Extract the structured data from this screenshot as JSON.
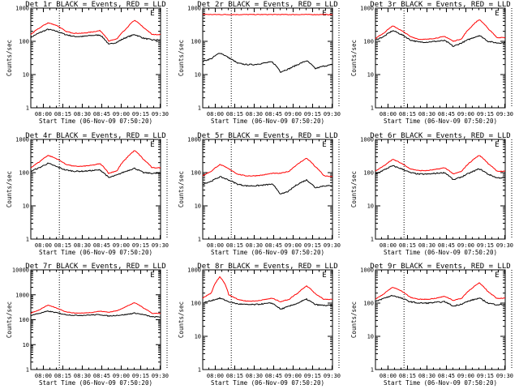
{
  "colors": {
    "events": "#000000",
    "lld": "#ff0000",
    "background": "#ffffff"
  },
  "shared": {
    "xlabel": "Start Time (06-Nov-09 07:50:20)",
    "ylabel": "Counts/sec",
    "xticks": [
      "08:00",
      "08:15",
      "08:30",
      "08:45",
      "09:00",
      "09:15",
      "09:30"
    ],
    "yticks": [
      "1",
      "10",
      "100",
      "1000"
    ],
    "corner_label": "E",
    "marker_times_min_after_start": [
      22,
      105
    ]
  },
  "chart_data": [
    {
      "type": "line",
      "title": "Det 1r BLACK = Events, RED = LLD",
      "yscale": "log",
      "ylim": [
        1,
        1000
      ],
      "xlim_min": [
        0,
        100
      ],
      "series": [
        {
          "name": "BLACK = Events",
          "color": "#000000",
          "values": [
            130,
            180,
            230,
            200,
            160,
            140,
            140,
            150,
            155,
            80,
            95,
            130,
            160,
            125,
            110,
            110
          ]
        },
        {
          "name": "RED = LLD",
          "color": "#ff0000",
          "values": [
            160,
            250,
            360,
            300,
            200,
            175,
            175,
            190,
            210,
            100,
            120,
            230,
            430,
            260,
            160,
            160
          ]
        }
      ]
    },
    {
      "type": "line",
      "title": "Det 2r BLACK = Events, RED = LLD",
      "yscale": "log",
      "ylim": [
        1,
        1000
      ],
      "series": [
        {
          "name": "BLACK = Events",
          "color": "#000000",
          "values": [
            25,
            30,
            45,
            32,
            22,
            20,
            20,
            22,
            24,
            12,
            15,
            20,
            26,
            15,
            18,
            20
          ]
        },
        {
          "name": "RED = LLD",
          "color": "#ff0000",
          "values": [
            650,
            640,
            640,
            640,
            640,
            640,
            640,
            640,
            640,
            640,
            640,
            640,
            640,
            640,
            640,
            640
          ]
        }
      ]
    },
    {
      "type": "line",
      "title": "Det 3r BLACK = Events, RED = LLD",
      "yscale": "log",
      "ylim": [
        1,
        1000
      ],
      "series": [
        {
          "name": "BLACK = Events",
          "color": "#000000",
          "values": [
            110,
            140,
            210,
            160,
            110,
            95,
            95,
            100,
            105,
            70,
            90,
            120,
            150,
            100,
            90,
            90
          ]
        },
        {
          "name": "RED = LLD",
          "color": "#ff0000",
          "values": [
            120,
            180,
            290,
            210,
            140,
            115,
            115,
            125,
            140,
            100,
            120,
            260,
            450,
            240,
            130,
            130
          ]
        }
      ]
    },
    {
      "type": "line",
      "title": "Det 4r BLACK = Events, RED = LLD",
      "yscale": "log",
      "ylim": [
        1,
        1000
      ],
      "series": [
        {
          "name": "BLACK = Events",
          "color": "#000000",
          "values": [
            110,
            140,
            190,
            150,
            120,
            110,
            110,
            115,
            120,
            70,
            85,
            110,
            135,
            100,
            95,
            95
          ]
        },
        {
          "name": "RED = LLD",
          "color": "#ff0000",
          "values": [
            140,
            210,
            330,
            260,
            180,
            155,
            155,
            165,
            185,
            95,
            115,
            260,
            460,
            250,
            140,
            140
          ]
        }
      ]
    },
    {
      "type": "line",
      "title": "Det 5r BLACK = Events, RED = LLD",
      "yscale": "log",
      "ylim": [
        1,
        1000
      ],
      "series": [
        {
          "name": "BLACK = Events",
          "color": "#000000",
          "values": [
            45,
            55,
            75,
            60,
            45,
            40,
            40,
            42,
            45,
            22,
            28,
            45,
            60,
            35,
            40,
            40
          ]
        },
        {
          "name": "RED = LLD",
          "color": "#ff0000",
          "values": [
            80,
            110,
            175,
            130,
            90,
            80,
            80,
            85,
            95,
            95,
            110,
            180,
            270,
            150,
            80,
            75
          ]
        }
      ]
    },
    {
      "type": "line",
      "title": "Det 6r BLACK = Events, RED = LLD",
      "yscale": "log",
      "ylim": [
        1,
        1000
      ],
      "series": [
        {
          "name": "BLACK = Events",
          "color": "#000000",
          "values": [
            90,
            120,
            160,
            130,
            100,
            90,
            90,
            95,
            100,
            60,
            75,
            100,
            130,
            90,
            70,
            70
          ]
        },
        {
          "name": "RED = LLD",
          "color": "#ff0000",
          "values": [
            110,
            160,
            250,
            190,
            130,
            115,
            115,
            125,
            140,
            90,
            110,
            210,
            330,
            190,
            110,
            110
          ]
        }
      ]
    },
    {
      "type": "line",
      "title": "Det 7r BLACK = Events, RED = LLD",
      "yscale": "log",
      "ylim": [
        1,
        10000
      ],
      "series": [
        {
          "name": "BLACK = Events",
          "color": "#000000",
          "values": [
            150,
            180,
            220,
            190,
            160,
            150,
            150,
            155,
            160,
            140,
            150,
            160,
            185,
            160,
            130,
            130
          ]
        },
        {
          "name": "RED = LLD",
          "color": "#ff0000",
          "values": [
            180,
            250,
            380,
            290,
            210,
            185,
            185,
            195,
            220,
            200,
            230,
            330,
            480,
            300,
            180,
            180
          ]
        }
      ]
    },
    {
      "type": "line",
      "title": "Det 8r BLACK = Events, RED = LLD",
      "yscale": "log",
      "ylim": [
        1,
        1000
      ],
      "series": [
        {
          "name": "BLACK = Events",
          "color": "#000000",
          "values": [
            100,
            120,
            140,
            110,
            95,
            90,
            90,
            95,
            100,
            65,
            80,
            100,
            130,
            90,
            85,
            85
          ]
        },
        {
          "name": "RED = LLD",
          "color": "#ff0000",
          "values": [
            140,
            200,
            620,
            180,
            130,
            115,
            115,
            125,
            140,
            110,
            130,
            200,
            330,
            190,
            130,
            130
          ]
        }
      ]
    },
    {
      "type": "line",
      "title": "Det 9r BLACK = Events, RED = LLD",
      "yscale": "log",
      "ylim": [
        1,
        1000
      ],
      "series": [
        {
          "name": "BLACK = Events",
          "color": "#000000",
          "values": [
            110,
            140,
            170,
            140,
            110,
            100,
            100,
            105,
            110,
            80,
            95,
            120,
            140,
            100,
            90,
            90
          ]
        },
        {
          "name": "RED = LLD",
          "color": "#ff0000",
          "values": [
            130,
            190,
            300,
            230,
            150,
            130,
            130,
            140,
            160,
            120,
            140,
            260,
            400,
            220,
            140,
            140
          ]
        }
      ]
    }
  ]
}
